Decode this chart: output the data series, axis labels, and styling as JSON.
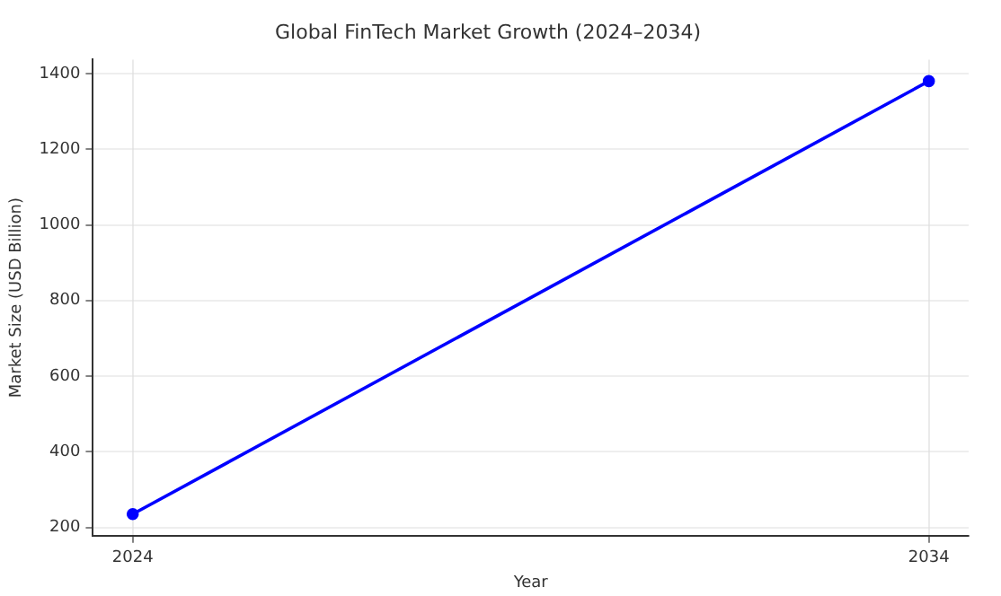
{
  "chart_data": {
    "type": "line",
    "title": "Global FinTech Market Growth (2024–2034)",
    "xlabel": "Year",
    "ylabel": "Market Size (USD Billion)",
    "x": [
      2024,
      2034
    ],
    "series": [
      {
        "color": "#0000ff",
        "values": [
          235,
          1380
        ]
      }
    ],
    "xlim": [
      2023.5,
      2034.5
    ],
    "xticks": [
      2024,
      2034
    ],
    "ylim": [
      178,
      1437
    ],
    "yticks": [
      200,
      400,
      600,
      800,
      1000,
      1200,
      1400
    ],
    "grid": true,
    "marker": "circle",
    "line_style": "solid",
    "legend": false
  }
}
